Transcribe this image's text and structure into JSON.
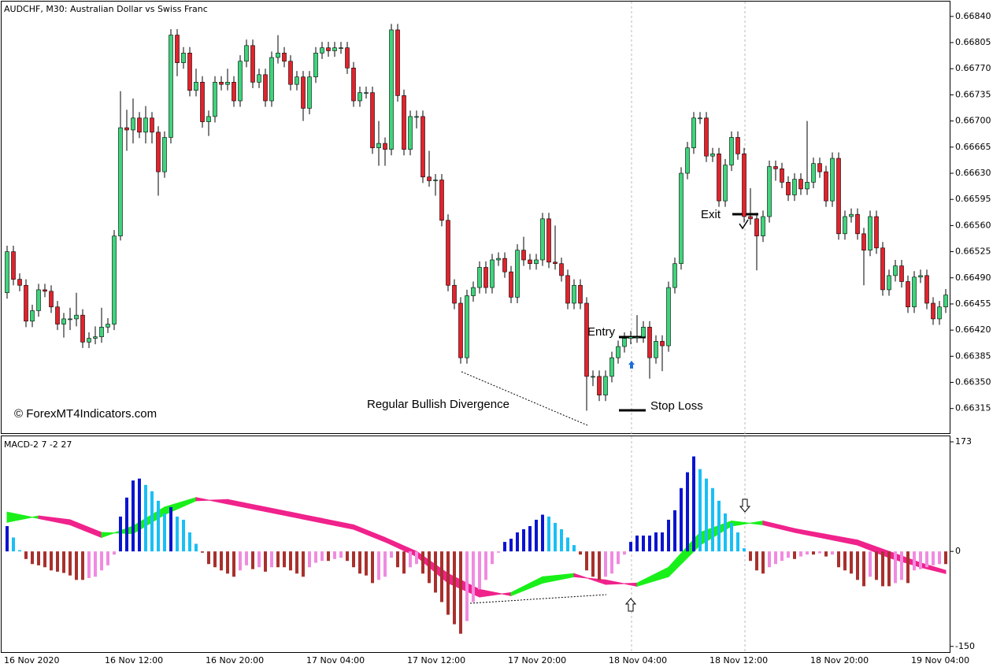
{
  "chart_data": [
    {
      "type": "candlestick",
      "title": "AUDCHF, M30:  Australian Dollar vs Swiss Franc",
      "watermark": "© ForexMT4Indicators.com",
      "annotations": [
        "Entry",
        "Exit",
        "Stop Loss",
        "Regular Bullish Divergence"
      ],
      "up_color": "#3ed47c",
      "down_color": "#e3222c",
      "categories": [
        "16 Nov 2020",
        null,
        null,
        null,
        null,
        null,
        null,
        null,
        null,
        null,
        null,
        null,
        null,
        null,
        null,
        null,
        "16 Nov 12:00",
        null,
        null,
        null,
        null,
        null,
        null,
        null,
        null,
        null,
        null,
        null,
        null,
        null,
        null,
        null,
        "16 Nov 20:00",
        null,
        null,
        null,
        null,
        null,
        null,
        null,
        null,
        null,
        null,
        null,
        null,
        null,
        null,
        null,
        "17 Nov 04:00",
        null,
        null,
        null,
        null,
        null,
        null,
        null,
        null,
        null,
        null,
        null,
        null,
        null,
        null,
        null,
        "17 Nov 12:00",
        null,
        null,
        null,
        null,
        null,
        null,
        null,
        null,
        null,
        null,
        null,
        null,
        null,
        null,
        null,
        "17 Nov 20:00",
        null,
        null,
        null,
        null,
        null,
        null,
        null,
        null,
        null,
        null,
        null,
        null,
        null,
        null,
        null,
        "18 Nov 04:00",
        null,
        null,
        null,
        null,
        null,
        null,
        null,
        null,
        null,
        null,
        null,
        null,
        null,
        null,
        null,
        "18 Nov 12:00",
        null,
        null,
        null,
        null,
        null,
        null,
        null,
        null,
        null,
        null,
        null,
        null,
        null,
        null,
        null,
        "18 Nov 20:00",
        null,
        null,
        null,
        null,
        null,
        null,
        null,
        null,
        null,
        null,
        null,
        null,
        null,
        null,
        null,
        "19 Nov 04:00",
        null,
        null,
        null,
        null,
        null
      ],
      "open": [
        0.6647,
        0.66525,
        0.66488,
        0.6648,
        0.66432,
        0.66446,
        0.66474,
        0.66472,
        0.66451,
        0.66428,
        0.66435,
        0.66435,
        0.6644,
        0.66404,
        0.66409,
        0.66411,
        0.66424,
        0.66428,
        0.66546,
        0.66691,
        0.66688,
        0.66704,
        0.66685,
        0.66704,
        0.66685,
        0.66632,
        0.66678,
        0.66815,
        0.66778,
        0.66791,
        0.66741,
        0.66752,
        0.66699,
        0.66706,
        0.66752,
        0.66749,
        0.66752,
        0.66727,
        0.6678,
        0.66801,
        0.66752,
        0.66762,
        0.66727,
        0.66785,
        0.66791,
        0.6678,
        0.66749,
        0.66759,
        0.66717,
        0.66759,
        0.66791,
        0.66798,
        0.66794,
        0.66798,
        0.66798,
        0.66771,
        0.66727,
        0.66738,
        0.66738,
        0.66664,
        0.6667,
        0.66662,
        0.66822,
        0.66734,
        0.66662,
        0.66706,
        0.66706,
        0.66625,
        0.6662,
        0.66621,
        0.66567,
        0.6648,
        0.66456,
        0.66383,
        0.66466,
        0.66477,
        0.66504,
        0.66477,
        0.66514,
        0.66516,
        0.66498,
        0.66464,
        0.66527,
        0.66514,
        0.66509,
        0.66514,
        0.66569,
        0.66511,
        0.66509,
        0.66493,
        0.66456,
        0.6648,
        0.66456,
        0.66358,
        0.66358,
        0.66333,
        0.66358,
        0.66383,
        0.66398,
        0.66409,
        0.66411,
        0.66411,
        0.66424,
        0.66383,
        0.66405,
        0.66399,
        0.66477,
        0.66509,
        0.6663,
        0.66664,
        0.66704,
        0.66704,
        0.66653,
        0.66656,
        0.66593,
        0.66641,
        0.66678,
        0.66656,
        0.66572,
        0.66569,
        0.66546,
        0.66572,
        0.66639,
        0.66636,
        0.66618,
        0.66601,
        0.66622,
        0.66609,
        0.66618,
        0.66643,
        0.66632,
        0.66593,
        0.6665,
        0.66549,
        0.66572,
        0.66575,
        0.66549,
        0.66527,
        0.66572,
        0.6653,
        0.66474,
        0.66493,
        0.66506,
        0.66485,
        0.66451,
        0.66491,
        0.66493,
        0.66456,
        0.66435,
        0.66451
      ],
      "high": [
        0.66533,
        0.66533,
        0.66496,
        0.66488,
        0.66454,
        0.66482,
        0.66482,
        0.6648,
        0.66459,
        0.66443,
        0.6645,
        0.6647,
        0.66448,
        0.66417,
        0.66425,
        0.6645,
        0.66436,
        0.66554,
        0.6674,
        0.66715,
        0.6673,
        0.66712,
        0.6672,
        0.66712,
        0.66693,
        0.66686,
        0.66823,
        0.66823,
        0.66799,
        0.66799,
        0.6677,
        0.6676,
        0.66714,
        0.6676,
        0.6676,
        0.6677,
        0.6676,
        0.66788,
        0.66809,
        0.66809,
        0.6677,
        0.6677,
        0.66793,
        0.66815,
        0.66799,
        0.66788,
        0.66767,
        0.66767,
        0.66767,
        0.66799,
        0.66806,
        0.66806,
        0.66806,
        0.66806,
        0.66806,
        0.66779,
        0.66746,
        0.66746,
        0.66746,
        0.667,
        0.66678,
        0.6683,
        0.6683,
        0.66742,
        0.66714,
        0.66714,
        0.66714,
        0.6666,
        0.66629,
        0.66629,
        0.66575,
        0.66488,
        0.66464,
        0.66474,
        0.66485,
        0.66512,
        0.66512,
        0.66522,
        0.66524,
        0.66524,
        0.66506,
        0.66535,
        0.66545,
        0.66522,
        0.66522,
        0.66577,
        0.66577,
        0.6656,
        0.66517,
        0.66501,
        0.66488,
        0.66488,
        0.66464,
        0.66366,
        0.66366,
        0.66366,
        0.66391,
        0.66406,
        0.66417,
        0.66419,
        0.6644,
        0.66432,
        0.66432,
        0.66413,
        0.66413,
        0.66485,
        0.66517,
        0.66638,
        0.66672,
        0.66712,
        0.66712,
        0.66712,
        0.66664,
        0.66664,
        0.66649,
        0.66686,
        0.66686,
        0.66664,
        0.6661,
        0.66577,
        0.6658,
        0.66647,
        0.66647,
        0.66644,
        0.66626,
        0.6663,
        0.6663,
        0.667,
        0.66651,
        0.66651,
        0.6664,
        0.66658,
        0.66658,
        0.6658,
        0.66583,
        0.66583,
        0.66557,
        0.6658,
        0.6658,
        0.66538,
        0.66501,
        0.66514,
        0.66514,
        0.66493,
        0.66499,
        0.66501,
        0.66501,
        0.66464,
        0.66459,
        0.66475
      ],
      "low": [
        0.66462,
        0.6648,
        0.66472,
        0.66424,
        0.66424,
        0.66438,
        0.66464,
        0.66443,
        0.6642,
        0.6641,
        0.6642,
        0.66425,
        0.66396,
        0.66396,
        0.66401,
        0.66403,
        0.66416,
        0.6642,
        0.6654,
        0.6666,
        0.6667,
        0.66677,
        0.6667,
        0.6667,
        0.666,
        0.66624,
        0.6667,
        0.6676,
        0.6677,
        0.66733,
        0.66733,
        0.66691,
        0.6668,
        0.66698,
        0.66741,
        0.66741,
        0.66719,
        0.66719,
        0.66772,
        0.66744,
        0.66744,
        0.66719,
        0.66719,
        0.66777,
        0.66772,
        0.66741,
        0.66741,
        0.667,
        0.66709,
        0.66751,
        0.66783,
        0.66786,
        0.66786,
        0.6679,
        0.66763,
        0.66719,
        0.66719,
        0.6673,
        0.66656,
        0.6664,
        0.6664,
        0.66654,
        0.66726,
        0.66654,
        0.66654,
        0.6669,
        0.66617,
        0.66612,
        0.666,
        0.66559,
        0.66472,
        0.66448,
        0.66375,
        0.66375,
        0.66458,
        0.66469,
        0.66469,
        0.66469,
        0.66506,
        0.6649,
        0.66456,
        0.66456,
        0.66506,
        0.66501,
        0.66501,
        0.66506,
        0.66503,
        0.66501,
        0.66485,
        0.66448,
        0.66448,
        0.66448,
        0.66312,
        0.66345,
        0.66325,
        0.66325,
        0.6635,
        0.66375,
        0.6639,
        0.66401,
        0.66403,
        0.66403,
        0.66355,
        0.66375,
        0.66365,
        0.66391,
        0.66469,
        0.66501,
        0.66622,
        0.66656,
        0.66696,
        0.66645,
        0.66645,
        0.66585,
        0.66585,
        0.66633,
        0.66648,
        0.66564,
        0.66561,
        0.665,
        0.66538,
        0.66564,
        0.6662,
        0.6661,
        0.66593,
        0.66593,
        0.66601,
        0.66601,
        0.6661,
        0.66624,
        0.66585,
        0.66585,
        0.66541,
        0.66541,
        0.66564,
        0.66541,
        0.6648,
        0.66519,
        0.66522,
        0.66466,
        0.66466,
        0.66485,
        0.66477,
        0.66443,
        0.66443,
        0.66483,
        0.66448,
        0.66427,
        0.66427,
        0.66443
      ],
      "close": [
        0.66525,
        0.66488,
        0.6648,
        0.66432,
        0.66446,
        0.66474,
        0.66472,
        0.66451,
        0.66428,
        0.66435,
        0.66435,
        0.6644,
        0.66404,
        0.66409,
        0.66411,
        0.66424,
        0.66428,
        0.66546,
        0.66691,
        0.66688,
        0.66704,
        0.66685,
        0.66704,
        0.66685,
        0.66632,
        0.66678,
        0.66815,
        0.66778,
        0.66791,
        0.66741,
        0.66752,
        0.66699,
        0.66706,
        0.66752,
        0.66749,
        0.66752,
        0.66727,
        0.6678,
        0.66801,
        0.66752,
        0.66762,
        0.66727,
        0.66785,
        0.66791,
        0.6678,
        0.66749,
        0.66759,
        0.66717,
        0.66759,
        0.66791,
        0.66798,
        0.66794,
        0.66798,
        0.66798,
        0.66771,
        0.66727,
        0.66738,
        0.66738,
        0.66664,
        0.6667,
        0.66662,
        0.66822,
        0.66734,
        0.66662,
        0.66706,
        0.66706,
        0.66625,
        0.6662,
        0.66621,
        0.66567,
        0.6648,
        0.66456,
        0.66383,
        0.66466,
        0.66477,
        0.66504,
        0.66477,
        0.66514,
        0.66516,
        0.66498,
        0.66464,
        0.66527,
        0.66514,
        0.66509,
        0.66514,
        0.66569,
        0.66511,
        0.66509,
        0.66493,
        0.66456,
        0.6648,
        0.66456,
        0.66358,
        0.66358,
        0.66333,
        0.66358,
        0.66383,
        0.66398,
        0.66409,
        0.66411,
        0.66411,
        0.66424,
        0.66383,
        0.66405,
        0.66399,
        0.66477,
        0.66509,
        0.6663,
        0.66664,
        0.66704,
        0.66704,
        0.66653,
        0.66656,
        0.66593,
        0.66641,
        0.66678,
        0.66656,
        0.66572,
        0.66569,
        0.66546,
        0.66572,
        0.66639,
        0.66636,
        0.66618,
        0.66601,
        0.66622,
        0.66609,
        0.66618,
        0.66643,
        0.66632,
        0.66593,
        0.6665,
        0.66549,
        0.66572,
        0.66575,
        0.66549,
        0.66527,
        0.66572,
        0.6653,
        0.66474,
        0.66493,
        0.66506,
        0.66485,
        0.66451,
        0.66491,
        0.66493,
        0.66456,
        0.66435,
        0.66451,
        0.66467
      ],
      "ylim": [
        0.66282,
        0.66862
      ],
      "yticks": [
        {
          "value": 0.6684,
          "label": "0.66840"
        },
        0.66805,
        {
          "value": 0.6677,
          "label": "0.66770"
        },
        0.66735,
        {
          "value": 0.667,
          "label": "0.66700"
        },
        0.66665,
        {
          "value": 0.6663,
          "label": "0.66630"
        },
        0.66595,
        {
          "value": 0.6656,
          "label": "0.66560"
        },
        0.66525,
        {
          "value": 0.6649,
          "label": "0.66490"
        },
        0.66455,
        {
          "value": 0.6642,
          "label": "0.66420"
        },
        0.66385,
        {
          "value": 0.6635,
          "label": "0.66350"
        },
        0.66315
      ]
    },
    {
      "type": "macd",
      "title": "MACD-2 7 -2 27",
      "histogram": {
        "colors": [
          "#0a14d0",
          "#19bff5",
          "#a8302c",
          "#f08be0"
        ],
        "values": [
          40,
          22,
          2,
          -12,
          -20,
          -22,
          -25,
          -30,
          -32,
          -34,
          -38,
          -45,
          -45,
          -42,
          -40,
          -30,
          -22,
          -5,
          55,
          85,
          112,
          115,
          105,
          95,
          80,
          60,
          70,
          55,
          50,
          30,
          12,
          -2,
          -20,
          -25,
          -30,
          -35,
          -40,
          -30,
          -22,
          -28,
          -25,
          -32,
          -25,
          -25,
          -25,
          -30,
          -35,
          -40,
          -25,
          -18,
          -15,
          -15,
          -12,
          -10,
          -15,
          -25,
          -35,
          -38,
          -50,
          -45,
          -40,
          -10,
          -25,
          -35,
          -25,
          -20,
          -35,
          -50,
          -65,
          -80,
          -100,
          -115,
          -130,
          -110,
          -80,
          -60,
          -45,
          -20,
          -2,
          15,
          20,
          30,
          35,
          40,
          50,
          58,
          55,
          45,
          35,
          22,
          10,
          -5,
          -30,
          -40,
          -45,
          -40,
          -35,
          -20,
          -5,
          15,
          25,
          25,
          25,
          30,
          30,
          50,
          65,
          100,
          125,
          150,
          130,
          115,
          100,
          80,
          60,
          45,
          30,
          5,
          -15,
          -30,
          -35,
          -25,
          -20,
          -15,
          -10,
          -12,
          -8,
          -5,
          -5,
          -3,
          -8,
          -5,
          -25,
          -30,
          -35,
          -45,
          -55,
          -40,
          -45,
          -55,
          -55,
          -50,
          -45,
          -50,
          -30,
          -28,
          -25,
          -22,
          -20,
          -20
        ]
      },
      "up_color": "#19f019",
      "down_color": "#f0228c",
      "series": [
        {
          "x": [
            0,
            5,
            10,
            15,
            20,
            25,
            30,
            35,
            40,
            45,
            50,
            55,
            60,
            65,
            70,
            75,
            80,
            85,
            90,
            95,
            100,
            105,
            110,
            115,
            120,
            125,
            130,
            135,
            140,
            145,
            149
          ],
          "values": [
            62,
            52,
            42,
            22,
            40,
            70,
            85,
            75,
            65,
            55,
            45,
            35,
            15,
            -8,
            -50,
            -72,
            -65,
            -40,
            -35,
            -52,
            -50,
            -25,
            30,
            48,
            42,
            30,
            20,
            10,
            -10,
            -25,
            -35
          ]
        },
        {
          "x": [
            0,
            5,
            10,
            15,
            20,
            25,
            30,
            35,
            40,
            45,
            50,
            55,
            60,
            65,
            70,
            75,
            80,
            85,
            90,
            95,
            100,
            105,
            110,
            115,
            120,
            125,
            130,
            135,
            140,
            145,
            149
          ],
          "values": [
            46,
            56,
            50,
            30,
            28,
            58,
            80,
            82,
            72,
            62,
            52,
            42,
            22,
            0,
            -35,
            -60,
            -70,
            -50,
            -40,
            -45,
            -55,
            -40,
            10,
            40,
            48,
            36,
            27,
            18,
            0,
            -18,
            -30
          ]
        }
      ],
      "ylim": [
        -159,
        183
      ],
      "yticks": [
        173,
        0,
        -150
      ]
    }
  ]
}
